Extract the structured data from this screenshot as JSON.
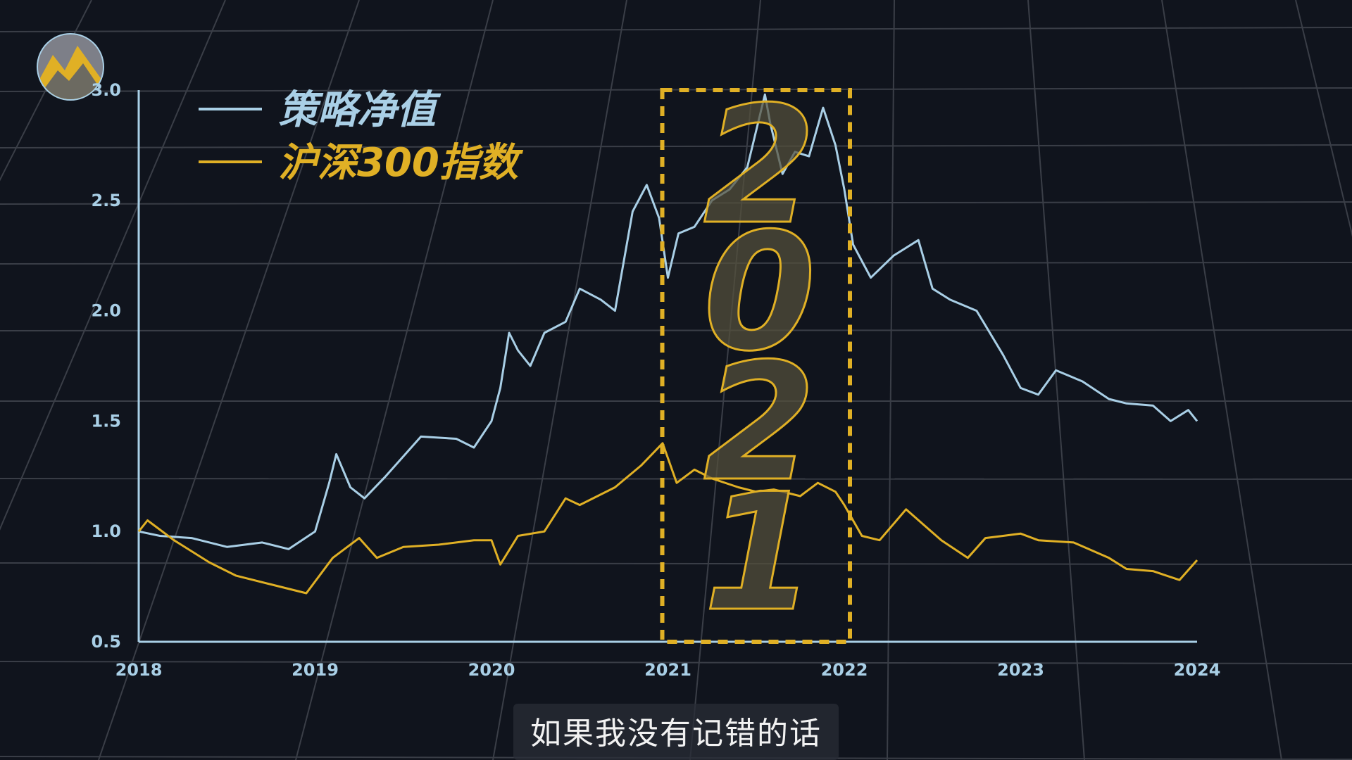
{
  "chart_data": {
    "type": "line",
    "xlim": [
      2018,
      2024
    ],
    "ylim": [
      0.5,
      3.0
    ],
    "x_ticks": [
      "2018",
      "2019",
      "2020",
      "2021",
      "2022",
      "2023",
      "2024"
    ],
    "y_ticks": [
      "0.5",
      "1.0",
      "1.5",
      "2.0",
      "2.5",
      "3.0"
    ],
    "grid": true,
    "legend_position": "top-left",
    "highlight": {
      "label": "2021",
      "x_range": [
        2021.0,
        2022.0
      ],
      "color": "#e0b025"
    },
    "series": [
      {
        "name": "策略净值",
        "color": "#a9cfe6",
        "x": [
          2018.0,
          2018.12,
          2018.3,
          2018.5,
          2018.7,
          2018.85,
          2019.0,
          2019.08,
          2019.12,
          2019.2,
          2019.28,
          2019.4,
          2019.6,
          2019.8,
          2019.9,
          2020.0,
          2020.05,
          2020.1,
          2020.15,
          2020.22,
          2020.3,
          2020.42,
          2020.5,
          2020.62,
          2020.7,
          2020.8,
          2020.88,
          2020.95,
          2021.0,
          2021.06,
          2021.15,
          2021.25,
          2021.35,
          2021.45,
          2021.55,
          2021.58,
          2021.65,
          2021.72,
          2021.8,
          2021.88,
          2021.95,
          2022.0,
          2022.05,
          2022.15,
          2022.28,
          2022.42,
          2022.5,
          2022.6,
          2022.75,
          2022.9,
          2023.0,
          2023.1,
          2023.2,
          2023.35,
          2023.5,
          2023.6,
          2023.75,
          2023.85,
          2023.95,
          2024.0
        ],
        "y": [
          1.0,
          0.98,
          0.97,
          0.93,
          0.95,
          0.92,
          1.0,
          1.22,
          1.35,
          1.2,
          1.15,
          1.25,
          1.43,
          1.42,
          1.38,
          1.5,
          1.65,
          1.9,
          1.82,
          1.75,
          1.9,
          1.95,
          2.1,
          2.05,
          2.0,
          2.45,
          2.57,
          2.42,
          2.15,
          2.35,
          2.38,
          2.5,
          2.55,
          2.65,
          2.98,
          2.85,
          2.62,
          2.72,
          2.7,
          2.92,
          2.75,
          2.55,
          2.3,
          2.15,
          2.25,
          2.32,
          2.1,
          2.05,
          2.0,
          1.8,
          1.65,
          1.62,
          1.73,
          1.68,
          1.6,
          1.58,
          1.57,
          1.5,
          1.55,
          1.5
        ]
      },
      {
        "name": "沪深300指数",
        "color": "#e0b025",
        "x": [
          2018.0,
          2018.05,
          2018.2,
          2018.4,
          2018.55,
          2018.75,
          2018.95,
          2019.1,
          2019.25,
          2019.35,
          2019.5,
          2019.7,
          2019.9,
          2020.0,
          2020.05,
          2020.15,
          2020.3,
          2020.42,
          2020.5,
          2020.7,
          2020.85,
          2020.97,
          2021.05,
          2021.15,
          2021.25,
          2021.4,
          2021.5,
          2021.6,
          2021.75,
          2021.85,
          2021.95,
          2022.0,
          2022.1,
          2022.2,
          2022.35,
          2022.45,
          2022.55,
          2022.7,
          2022.8,
          2022.9,
          2023.0,
          2023.1,
          2023.3,
          2023.5,
          2023.6,
          2023.75,
          2023.9,
          2024.0
        ],
        "y": [
          1.0,
          1.05,
          0.96,
          0.86,
          0.8,
          0.76,
          0.72,
          0.88,
          0.97,
          0.88,
          0.93,
          0.94,
          0.96,
          0.96,
          0.85,
          0.98,
          1.0,
          1.15,
          1.12,
          1.2,
          1.3,
          1.4,
          1.22,
          1.28,
          1.24,
          1.2,
          1.18,
          1.19,
          1.16,
          1.22,
          1.18,
          1.12,
          0.98,
          0.96,
          1.1,
          1.03,
          0.96,
          0.88,
          0.97,
          0.98,
          0.99,
          0.96,
          0.95,
          0.88,
          0.83,
          0.82,
          0.78,
          0.87
        ]
      }
    ]
  },
  "subtitle": "如果我没有记错的话",
  "logo_name": "mountain-logo-icon"
}
